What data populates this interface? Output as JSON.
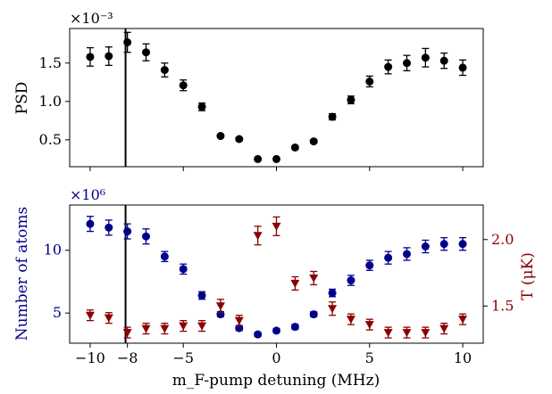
{
  "chart_data": [
    {
      "type": "scatter",
      "xlabel": "",
      "ylabel": "PSD",
      "y_scale_label": "×10⁻³",
      "xlim": [
        -11.1,
        11.1
      ],
      "ylim": [
        0.00015,
        0.00195
      ],
      "y_ticks": [
        0.0005,
        0.001,
        0.0015
      ],
      "y_tick_labels": [
        "0.5",
        "1.0",
        "1.5"
      ],
      "x_ticks": [
        -10,
        -5,
        0,
        5,
        10
      ],
      "vertical_line_x": -8.1,
      "series": [
        {
          "color": "#000000",
          "marker": "circle",
          "x": [
            -10,
            -9,
            -8,
            -7,
            -6,
            -5,
            -4,
            -3,
            -2,
            -1,
            0,
            1,
            2,
            3,
            4,
            5,
            6,
            7,
            8,
            9,
            10
          ],
          "y": [
            0.00158,
            0.00159,
            0.00177,
            0.00164,
            0.00141,
            0.00121,
            0.00093,
            0.00055,
            0.00051,
            0.00025,
            0.00025,
            0.0004,
            0.00048,
            0.0008,
            0.00102,
            0.00126,
            0.00145,
            0.0015,
            0.00157,
            0.00153,
            0.00144
          ],
          "err": [
            0.00012,
            0.00012,
            0.00013,
            0.00011,
            9e-05,
            7e-05,
            5e-05,
            2e-05,
            2e-05,
            1e-05,
            1e-05,
            2e-05,
            2e-05,
            4e-05,
            5e-05,
            7e-05,
            9e-05,
            0.0001,
            0.00012,
            0.0001,
            0.0001
          ]
        }
      ]
    },
    {
      "type": "scatter",
      "xlabel": "m_F-pump detuning (MHz)",
      "ylabel_left": "Number of atoms",
      "ylabel_right": "T (μK)",
      "y_scale_label": "×10⁶",
      "xlim": [
        -11.1,
        11.1
      ],
      "ylim_left": [
        2600000,
        13600000
      ],
      "y_ticks_left": [
        5000000,
        10000000
      ],
      "y_tick_labels_left": [
        "5",
        "10"
      ],
      "ylim_right": [
        1.22,
        2.26
      ],
      "y_ticks_right": [
        1.5,
        2.0
      ],
      "y_tick_labels_right": [
        "1.5",
        "2.0"
      ],
      "x_ticks": [
        -10,
        -8,
        -5,
        0,
        5,
        10
      ],
      "x_tick_labels": [
        "−10",
        "−8",
        "−5",
        "0",
        "5",
        "10"
      ],
      "vertical_line_x": -8.1,
      "series": [
        {
          "color": "#00008b",
          "marker": "circle",
          "axis": "left",
          "x": [
            -10,
            -9,
            -8,
            -7,
            -6,
            -5,
            -4,
            -3,
            -2,
            -1,
            0,
            1,
            2,
            3,
            4,
            5,
            6,
            7,
            8,
            9,
            10
          ],
          "y": [
            12100000,
            11800000,
            11500000,
            11100000,
            9500000,
            8500000,
            6400000,
            4900000,
            3800000,
            3300000,
            3600000,
            3900000,
            4900000,
            6600000,
            7600000,
            8800000,
            9400000,
            9700000,
            10300000,
            10500000,
            10500000
          ],
          "err": [
            600000,
            600000,
            600000,
            600000,
            400000,
            400000,
            300000,
            200000,
            200000,
            150000,
            150000,
            200000,
            200000,
            300000,
            400000,
            400000,
            500000,
            500000,
            500000,
            500000,
            500000
          ]
        },
        {
          "color": "#8b0000",
          "marker": "triangle-down",
          "axis": "right",
          "x": [
            -10,
            -9,
            -8,
            -7,
            -6,
            -5,
            -4,
            -3,
            -2,
            -1,
            0,
            1,
            2,
            3,
            4,
            5,
            6,
            7,
            8,
            9,
            10
          ],
          "y": [
            1.43,
            1.41,
            1.3,
            1.33,
            1.33,
            1.35,
            1.35,
            1.5,
            1.39,
            2.03,
            2.1,
            1.67,
            1.71,
            1.48,
            1.4,
            1.36,
            1.3,
            1.3,
            1.3,
            1.33,
            1.4
          ],
          "err": [
            0.04,
            0.04,
            0.04,
            0.04,
            0.04,
            0.04,
            0.04,
            0.05,
            0.04,
            0.07,
            0.07,
            0.05,
            0.05,
            0.05,
            0.04,
            0.04,
            0.04,
            0.04,
            0.04,
            0.04,
            0.04
          ]
        }
      ]
    }
  ]
}
